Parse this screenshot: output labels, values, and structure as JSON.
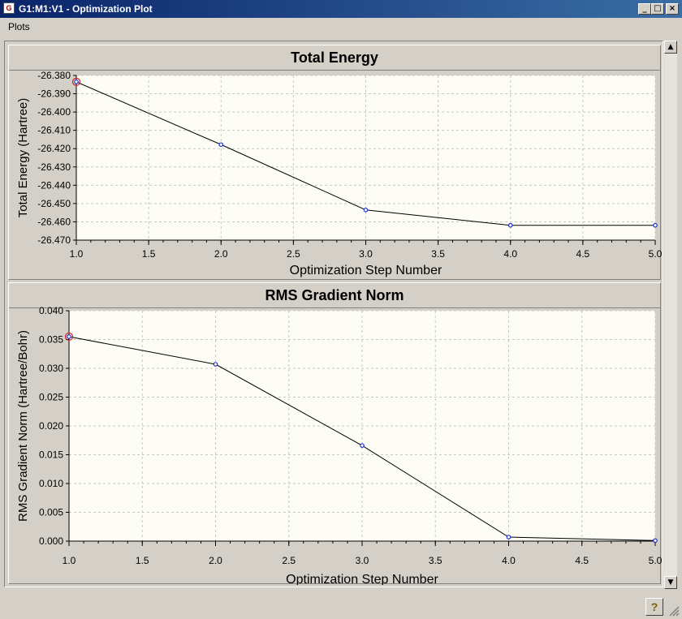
{
  "window": {
    "title": "G1:M1:V1 - Optimization Plot",
    "minimize_glyph": "_",
    "maximize_glyph": "□",
    "close_glyph": "×"
  },
  "menu": {
    "items": [
      {
        "label": "Plots"
      }
    ]
  },
  "icons": {
    "app": "gaussview-app-icon",
    "help": "help-icon",
    "scroll_up": "arrow-up-icon",
    "scroll_down": "arrow-down-icon",
    "resize": "resize-grip-icon"
  },
  "help_glyph": "?",
  "colors": {
    "line": "#000000",
    "point": "#1c2fd0",
    "highlight": "#d02020",
    "plot_background": "#fdfdf5",
    "grid": "#c8c8c8"
  },
  "chart_data": [
    {
      "type": "line",
      "title": "Total Energy",
      "xlabel": "Optimization Step Number",
      "ylabel": "Total Energy (Hartree)",
      "x": [
        1,
        2,
        3,
        4,
        5
      ],
      "series": [
        {
          "values": [
            -26.3835,
            -26.4178,
            -26.4535,
            -26.4619,
            -26.4619
          ]
        }
      ],
      "xlim": [
        1.0,
        5.0
      ],
      "ylim": [
        -26.47,
        -26.38
      ],
      "xticks": [
        "1.0",
        "1.5",
        "2.0",
        "2.5",
        "3.0",
        "3.5",
        "4.0",
        "4.5",
        "5.0"
      ],
      "yticks": [
        "-26.380",
        "-26.390",
        "-26.400",
        "-26.410",
        "-26.420",
        "-26.430",
        "-26.440",
        "-26.450",
        "-26.460",
        "-26.470"
      ],
      "grid": true,
      "highlighted_point": 1
    },
    {
      "type": "line",
      "title": "RMS Gradient Norm",
      "xlabel": "Optimization Step Number",
      "ylabel": "RMS Gradient Norm (Hartree/Bohr)",
      "x": [
        1,
        2,
        3,
        4,
        5
      ],
      "series": [
        {
          "values": [
            0.0355,
            0.0307,
            0.0166,
            0.0007,
            0.0001
          ]
        }
      ],
      "xlim": [
        1.0,
        5.0
      ],
      "ylim": [
        0.0,
        0.04
      ],
      "xticks": [
        "1.0",
        "1.5",
        "2.0",
        "2.5",
        "3.0",
        "3.5",
        "4.0",
        "4.5",
        "5.0"
      ],
      "yticks": [
        "0.040",
        "0.035",
        "0.030",
        "0.025",
        "0.020",
        "0.015",
        "0.010",
        "0.005",
        "0.000"
      ],
      "grid": true,
      "highlighted_point": 1
    }
  ]
}
